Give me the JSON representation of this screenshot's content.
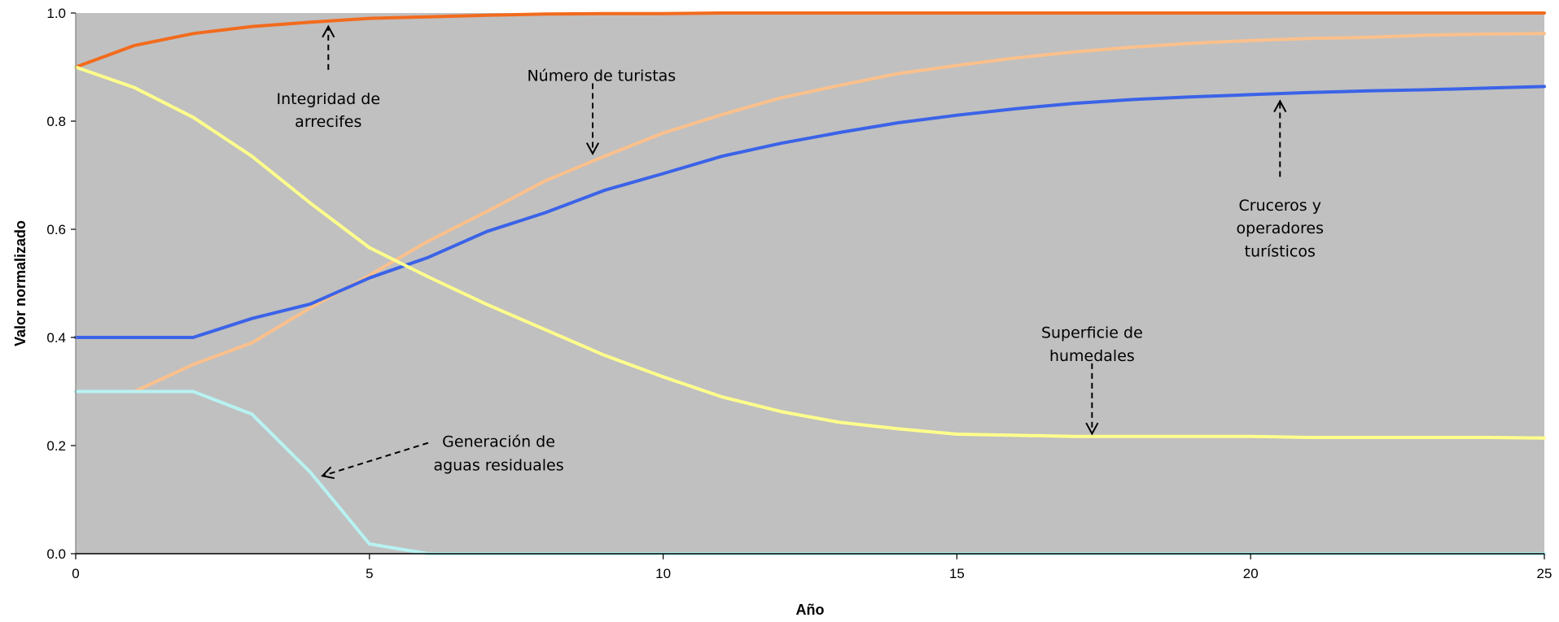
{
  "chart_data": {
    "type": "line",
    "xlabel": "Año",
    "ylabel": "Valor normalizado",
    "xlim": [
      0,
      25
    ],
    "ylim": [
      0,
      1
    ],
    "x_ticks": [
      "0",
      "5",
      "10",
      "15",
      "20",
      "25"
    ],
    "y_ticks": [
      "0.0",
      "0.2",
      "0.4",
      "0.6",
      "0.8",
      "1.0"
    ],
    "grid": false,
    "plot_background": "#c0c0c0",
    "x": [
      0,
      1,
      2,
      3,
      4,
      5,
      6,
      7,
      8,
      9,
      10,
      11,
      12,
      13,
      14,
      15,
      16,
      17,
      18,
      19,
      20,
      21,
      22,
      23,
      24,
      25
    ],
    "series": [
      {
        "key": "reef",
        "color": "#f26b1d",
        "values": [
          0.9,
          0.94,
          0.962,
          0.975,
          0.983,
          0.99,
          0.993,
          0.996,
          0.998,
          0.999,
          0.999,
          1.0,
          1.0,
          1.0,
          1.0,
          1.0,
          1.0,
          1.0,
          1.0,
          1.0,
          1.0,
          1.0,
          1.0,
          1.0,
          1.0,
          1.0
        ]
      },
      {
        "key": "tourists",
        "color": "#fbc08c",
        "values": [
          0.3,
          0.3,
          0.35,
          0.39,
          0.455,
          0.515,
          0.578,
          0.633,
          0.69,
          0.735,
          0.778,
          0.812,
          0.843,
          0.866,
          0.888,
          0.903,
          0.917,
          0.928,
          0.937,
          0.944,
          0.949,
          0.953,
          0.955,
          0.959,
          0.961,
          0.962
        ]
      },
      {
        "key": "cruises",
        "color": "#3b63e8",
        "values": [
          0.4,
          0.4,
          0.4,
          0.435,
          0.462,
          0.51,
          0.548,
          0.596,
          0.631,
          0.672,
          0.703,
          0.735,
          0.759,
          0.779,
          0.797,
          0.811,
          0.823,
          0.833,
          0.84,
          0.845,
          0.849,
          0.853,
          0.856,
          0.858,
          0.861,
          0.864
        ]
      },
      {
        "key": "wetlands",
        "color": "#ffff8c",
        "values": [
          0.9,
          0.862,
          0.807,
          0.735,
          0.648,
          0.566,
          0.512,
          0.461,
          0.414,
          0.367,
          0.327,
          0.29,
          0.263,
          0.243,
          0.231,
          0.221,
          0.219,
          0.217,
          0.217,
          0.217,
          0.217,
          0.215,
          0.215,
          0.215,
          0.215,
          0.214
        ]
      },
      {
        "key": "wastewater",
        "color": "#b8f2f2",
        "values": [
          0.3,
          0.3,
          0.3,
          0.258,
          0.15,
          0.018,
          0.0,
          0.0,
          0.0,
          0.0,
          0.0,
          0.0,
          0.0,
          0.0,
          0.0,
          0.0,
          0.0,
          0.0,
          0.0,
          0.0,
          0.0,
          0.0,
          0.0,
          0.0,
          0.0,
          0.0
        ]
      }
    ],
    "annotations": [
      {
        "key": "reef",
        "lines": [
          "Integridad de",
          "arrecifes"
        ],
        "text_x": 4.3,
        "text_y": [
          0.842,
          0.8
        ],
        "arrow": {
          "x": 4.3,
          "from_y": 0.895,
          "to_y": 0.975
        }
      },
      {
        "key": "tourists",
        "lines": [
          "Número de turistas"
        ],
        "text_x": 8.95,
        "text_y": [
          0.885
        ],
        "arrow": {
          "x": 8.8,
          "from_y": 0.87,
          "to_y": 0.74
        }
      },
      {
        "key": "cruises",
        "lines": [
          "Cruceros y",
          "operadores",
          "turísticos"
        ],
        "text_x": 20.5,
        "text_y": [
          0.645,
          0.603,
          0.56
        ],
        "arrow": {
          "x": 20.5,
          "from_y": 0.697,
          "to_y": 0.837
        }
      },
      {
        "key": "wetlands",
        "lines": [
          "Superficie de",
          "humedales"
        ],
        "text_x": 17.3,
        "text_y": [
          0.41,
          0.367
        ],
        "arrow": {
          "x": 17.3,
          "from_y": 0.352,
          "to_y": 0.222
        }
      },
      {
        "key": "wastewater",
        "lines": [
          "Generación de",
          "aguas residuales"
        ],
        "text_x": 7.2,
        "text_y": [
          0.208,
          0.165
        ],
        "arrow": {
          "x": 6.0,
          "y": 0.205,
          "to_x": 4.2,
          "to_y": 0.144
        }
      }
    ]
  }
}
